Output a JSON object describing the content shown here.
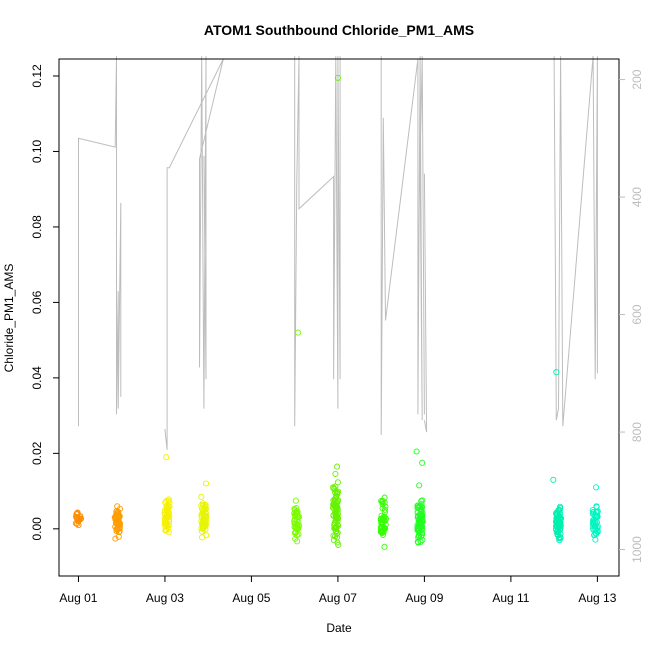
{
  "chart_data": {
    "type": "scatter",
    "title": "ATOM1 Southbound Chloride_PM1_AMS",
    "xlabel": "Date",
    "ylabel": "Chloride_PM1_AMS",
    "x_ticks": [
      "Aug 01",
      "Aug 03",
      "Aug 05",
      "Aug 07",
      "Aug 09",
      "Aug 11",
      "Aug 13"
    ],
    "x_tick_days": [
      1,
      3,
      5,
      7,
      9,
      11,
      13
    ],
    "xlim_days": [
      0.55,
      13.5
    ],
    "y_ticks": [
      0.0,
      0.02,
      0.04,
      0.06,
      0.08,
      0.1,
      0.12
    ],
    "y_tick_labels": [
      "0.00",
      "0.02",
      "0.04",
      "0.06",
      "0.08",
      "0.10",
      "0.12"
    ],
    "ylim": [
      -0.0125,
      0.1245
    ],
    "right_axis": {
      "ticks": [
        200,
        400,
        600,
        800,
        1000
      ],
      "tick_labels": [
        "200",
        "400",
        "600",
        "800",
        "1000"
      ],
      "lim_top": 165,
      "lim_bottom": 1045,
      "color": "#bdbdbd"
    },
    "point_groups": [
      {
        "x": 1.0,
        "color": "#ff8c00",
        "n": 22,
        "ymin": -0.001,
        "ymax": 0.006
      },
      {
        "x": 1.9,
        "color": "#ff9d00",
        "n": 55,
        "ymin": -0.004,
        "ymax": 0.008
      },
      {
        "x": 3.05,
        "color": "#f5f000",
        "n": 45,
        "ymin": -0.003,
        "ymax": 0.01
      },
      {
        "x": 3.9,
        "color": "#e6f500",
        "n": 55,
        "ymin": -0.004,
        "ymax": 0.009
      },
      {
        "x": 6.05,
        "color": "#7cfc00",
        "n": 45,
        "ymin": -0.004,
        "ymax": 0.009
      },
      {
        "x": 6.95,
        "color": "#66f200",
        "n": 80,
        "ymin": -0.007,
        "ymax": 0.016
      },
      {
        "x": 8.05,
        "color": "#33ff00",
        "n": 45,
        "ymin": -0.006,
        "ymax": 0.01
      },
      {
        "x": 8.9,
        "color": "#22ff22",
        "n": 80,
        "ymin": -0.006,
        "ymax": 0.01
      },
      {
        "x": 12.1,
        "color": "#00f0b0",
        "n": 70,
        "ymin": -0.005,
        "ymax": 0.008
      },
      {
        "x": 12.95,
        "color": "#00f5c0",
        "n": 45,
        "ymin": -0.004,
        "ymax": 0.008
      }
    ],
    "outliers": [
      {
        "x": 3.03,
        "y": 0.019,
        "color": "#f5f000"
      },
      {
        "x": 3.95,
        "y": 0.012,
        "color": "#e6f500"
      },
      {
        "x": 6.08,
        "y": 0.052,
        "color": "#7cfc00"
      },
      {
        "x": 7.0,
        "y": 0.1195,
        "color": "#66f200"
      },
      {
        "x": 6.98,
        "y": 0.0165,
        "color": "#66f200"
      },
      {
        "x": 8.82,
        "y": 0.0205,
        "color": "#22ff22"
      },
      {
        "x": 8.95,
        "y": 0.0175,
        "color": "#22ff22"
      },
      {
        "x": 8.88,
        "y": 0.0115,
        "color": "#22ff22"
      },
      {
        "x": 12.05,
        "y": 0.0415,
        "color": "#00f0b0"
      },
      {
        "x": 11.98,
        "y": 0.013,
        "color": "#00f0b0"
      },
      {
        "x": 12.97,
        "y": 0.011,
        "color": "#00f5c0"
      }
    ],
    "line_series": {
      "color": "#bdbdbd",
      "segments": [
        [
          [
            1.0,
            595
          ],
          [
            1.0,
            790
          ],
          [
            1.0,
            300
          ],
          [
            1.85,
            315
          ],
          [
            1.88,
            160
          ],
          [
            1.88,
            770
          ],
          [
            1.92,
            560
          ],
          [
            1.92,
            760
          ],
          [
            1.98,
            410
          ],
          [
            1.98,
            740
          ]
        ],
        [
          [
            3.0,
            795
          ],
          [
            3.05,
            830
          ],
          [
            3.05,
            350
          ],
          [
            3.1,
            350
          ],
          [
            4.35,
            165
          ],
          [
            3.8,
            335
          ],
          [
            3.8,
            690
          ],
          [
            3.85,
            160
          ],
          [
            3.9,
            760
          ],
          [
            3.95,
            160
          ],
          [
            3.95,
            710
          ],
          [
            3.9,
            330
          ]
        ],
        [
          [
            6.0,
            160
          ],
          [
            6.0,
            790
          ],
          [
            6.05,
            370
          ],
          [
            6.1,
            160
          ],
          [
            6.1,
            420
          ],
          [
            6.9,
            365
          ],
          [
            6.9,
            710
          ],
          [
            6.95,
            160
          ],
          [
            7.0,
            760
          ],
          [
            7.0,
            160
          ],
          [
            7.05,
            710
          ],
          [
            7.05,
            160
          ]
        ],
        [
          [
            8.0,
            160
          ],
          [
            8.0,
            805
          ],
          [
            8.05,
            265
          ],
          [
            8.1,
            610
          ],
          [
            8.85,
            165
          ],
          [
            8.85,
            770
          ],
          [
            8.9,
            160
          ],
          [
            8.95,
            780
          ],
          [
            8.9,
            340
          ],
          [
            8.95,
            160
          ],
          [
            9.0,
            770
          ]
        ],
        [
          [
            9.0,
            360
          ],
          [
            9.05,
            800
          ],
          [
            9.0,
            780
          ]
        ],
        [
          [
            12.0,
            160
          ],
          [
            12.05,
            780
          ],
          [
            12.1,
            760
          ],
          [
            12.15,
            160
          ],
          [
            12.2,
            790
          ],
          [
            12.9,
            160
          ],
          [
            12.95,
            710
          ],
          [
            13.0,
            160
          ],
          [
            13.0,
            700
          ]
        ]
      ]
    }
  }
}
